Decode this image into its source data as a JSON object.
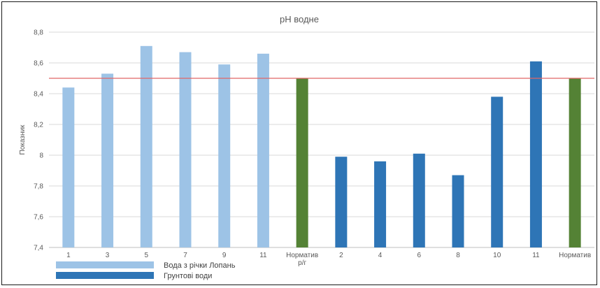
{
  "chart_data": {
    "type": "bar",
    "title": "pH водне",
    "xlabel": "",
    "ylabel": "Показник",
    "ylim": [
      7.4,
      8.8
    ],
    "yticks": [
      "7,4",
      "7,6",
      "7,8",
      "8",
      "8,2",
      "8,4",
      "8,6",
      "8,8"
    ],
    "grid": true,
    "reference_line": {
      "value": 8.5,
      "color": "#e06666"
    },
    "categories": [
      "1",
      "3",
      "5",
      "7",
      "9",
      "11",
      "Норматив р/г",
      "2",
      "4",
      "6",
      "8",
      "10",
      "11",
      "Норматив"
    ],
    "values": [
      8.44,
      8.53,
      8.71,
      8.67,
      8.59,
      8.66,
      8.5,
      7.99,
      7.96,
      8.01,
      7.87,
      8.38,
      8.61,
      8.5
    ],
    "bar_groups": [
      "river",
      "river",
      "river",
      "river",
      "river",
      "river",
      "norm",
      "ground",
      "ground",
      "ground",
      "ground",
      "ground",
      "ground",
      "norm"
    ],
    "colors": {
      "river": "#9dc3e6",
      "ground": "#2e75b6",
      "norm": "#548235",
      "grid": "#d9d9d9",
      "axis": "#bfbfbf"
    },
    "legend": {
      "placement": "bottom-left",
      "items": [
        {
          "label": "Вода з річки Лопань",
          "group": "river"
        },
        {
          "label": "Грунтові води",
          "group": "ground"
        }
      ]
    }
  }
}
